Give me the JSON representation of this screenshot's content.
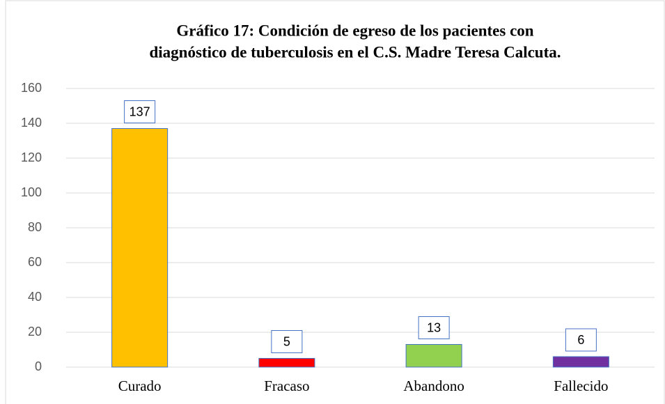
{
  "chart_data": {
    "type": "bar",
    "title": [
      "Gráfico 17: Condición de egreso de los pacientes con",
      "diagnóstico de tuberculosis en el C.S. Madre Teresa Calcuta."
    ],
    "categories": [
      "Curado",
      "Fracaso",
      "Abandono",
      "Fallecido"
    ],
    "values": [
      137,
      5,
      13,
      6
    ],
    "colors": [
      "#ffc000",
      "#ff0000",
      "#92d050",
      "#7030a0"
    ],
    "ylim": [
      0,
      160
    ],
    "yticks": [
      0,
      20,
      40,
      60,
      80,
      100,
      120,
      140,
      160
    ],
    "grid": true
  }
}
